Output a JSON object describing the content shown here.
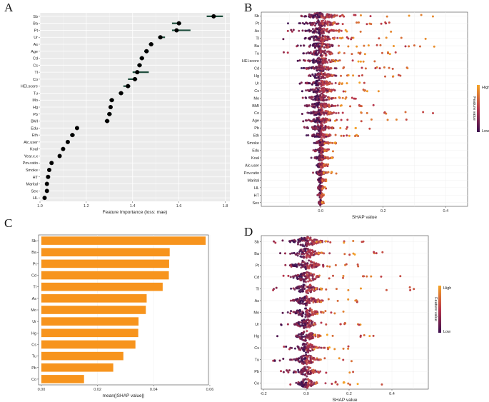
{
  "chart_data": [
    {
      "panel": "A",
      "type": "scatter",
      "subtype": "dot-and-interval",
      "xlabel": "Feature Importance (loss: mae)",
      "xlim": [
        1.0,
        1.82
      ],
      "xticks": [
        1.0,
        1.2,
        1.4,
        1.6,
        1.8
      ],
      "xtick_labels": [
        "1.0",
        "1.2",
        "1.4",
        "1.6",
        "1.8"
      ],
      "points": [
        {
          "label": "Sb",
          "value": 1.75,
          "lo": 1.72,
          "hi": 1.79
        },
        {
          "label": "Ba",
          "value": 1.6,
          "lo": 1.57,
          "hi": 1.61
        },
        {
          "label": "Pt",
          "value": 1.59,
          "lo": 1.57,
          "hi": 1.65
        },
        {
          "label": "Ur",
          "value": 1.52,
          "lo": 1.51,
          "hi": 1.54
        },
        {
          "label": "As",
          "value": 1.48,
          "lo": 1.47,
          "hi": 1.49
        },
        {
          "label": "Age",
          "value": 1.46,
          "lo": 1.45,
          "hi": 1.47
        },
        {
          "label": "Cd",
          "value": 1.44,
          "lo": 1.43,
          "hi": 1.45
        },
        {
          "label": "Cs",
          "value": 1.43,
          "lo": 1.42,
          "hi": 1.44
        },
        {
          "label": "Tl",
          "value": 1.42,
          "lo": 1.4,
          "hi": 1.47
        },
        {
          "label": "Co",
          "value": 1.41,
          "lo": 1.38,
          "hi": 1.42
        },
        {
          "label": "HEI.score",
          "value": 1.38,
          "lo": 1.36,
          "hi": 1.39
        },
        {
          "label": "Tu",
          "value": 1.35,
          "lo": 1.34,
          "hi": 1.36
        },
        {
          "label": "Mo",
          "value": 1.31,
          "lo": 1.3,
          "hi": 1.32
        },
        {
          "label": "Hg",
          "value": 1.305,
          "lo": 1.3,
          "hi": 1.31
        },
        {
          "label": "Pb",
          "value": 1.3,
          "lo": 1.29,
          "hi": 1.31
        },
        {
          "label": "BMI",
          "value": 1.29,
          "lo": 1.28,
          "hi": 1.3
        },
        {
          "label": "Edu",
          "value": 1.16,
          "lo": 1.16,
          "hi": 1.16
        },
        {
          "label": "Eth",
          "value": 1.14,
          "lo": 1.13,
          "hi": 1.15
        },
        {
          "label": "Alc.user",
          "value": 1.12,
          "lo": 1.12,
          "hi": 1.12
        },
        {
          "label": "Koal",
          "value": 1.1,
          "lo": 1.1,
          "hi": 1.1
        },
        {
          "label": "Year.x.x",
          "value": 1.085,
          "lo": 1.085,
          "hi": 1.085
        },
        {
          "label": "Pov.ratio",
          "value": 1.05,
          "lo": 1.05,
          "hi": 1.05
        },
        {
          "label": "Smoke",
          "value": 1.04,
          "lo": 1.04,
          "hi": 1.04
        },
        {
          "label": "HT",
          "value": 1.035,
          "lo": 1.035,
          "hi": 1.035
        },
        {
          "label": "Marital",
          "value": 1.03,
          "lo": 1.03,
          "hi": 1.03
        },
        {
          "label": "Sex",
          "value": 1.03,
          "lo": 1.03,
          "hi": 1.03
        },
        {
          "label": "HL",
          "value": 1.02,
          "lo": 1.02,
          "hi": 1.02
        }
      ]
    },
    {
      "panel": "B",
      "type": "scatter",
      "subtype": "shap-beeswarm",
      "xlabel": "SHAP value",
      "xlim": [
        -0.19,
        0.47
      ],
      "xticks": [
        0.0,
        0.2,
        0.4
      ],
      "xtick_labels": [
        "0.0",
        "0.2",
        "0.4"
      ],
      "legend_title": "Feature value",
      "legend_high": "High",
      "legend_low": "Low",
      "features": [
        {
          "label": "Sb",
          "spread": 0.05,
          "right_tail": 0.37,
          "left_tail": -0.15
        },
        {
          "label": "Pt",
          "spread": 0.05,
          "right_tail": 0.25,
          "left_tail": -0.12
        },
        {
          "label": "As",
          "spread": 0.04,
          "right_tail": 0.24,
          "left_tail": -0.11
        },
        {
          "label": "Tl",
          "spread": 0.04,
          "right_tail": 0.4,
          "left_tail": -0.15
        },
        {
          "label": "Ba",
          "spread": 0.04,
          "right_tail": 0.45,
          "left_tail": -0.14
        },
        {
          "label": "Tu",
          "spread": 0.04,
          "right_tail": 0.24,
          "left_tail": -0.13
        },
        {
          "label": "HEI.score",
          "spread": 0.04,
          "right_tail": 0.2,
          "left_tail": -0.08
        },
        {
          "label": "Cd",
          "spread": 0.035,
          "right_tail": 0.28,
          "left_tail": -0.08
        },
        {
          "label": "Hg",
          "spread": 0.035,
          "right_tail": 0.28,
          "left_tail": -0.07
        },
        {
          "label": "Ur",
          "spread": 0.035,
          "right_tail": 0.36,
          "left_tail": -0.07
        },
        {
          "label": "Cs",
          "spread": 0.035,
          "right_tail": 0.2,
          "left_tail": -0.07
        },
        {
          "label": "Mo",
          "spread": 0.035,
          "right_tail": 0.21,
          "left_tail": -0.07
        },
        {
          "label": "BMI",
          "spread": 0.035,
          "right_tail": 0.21,
          "left_tail": -0.07
        },
        {
          "label": "Co",
          "spread": 0.035,
          "right_tail": 0.36,
          "left_tail": -0.07
        },
        {
          "label": "Age",
          "spread": 0.03,
          "right_tail": 0.28,
          "left_tail": -0.06
        },
        {
          "label": "Pb",
          "spread": 0.03,
          "right_tail": 0.18,
          "left_tail": -0.06
        },
        {
          "label": "Eth",
          "spread": 0.025,
          "right_tail": 0.14,
          "left_tail": -0.03
        },
        {
          "label": "Smoke",
          "spread": 0.015,
          "right_tail": 0.05,
          "left_tail": -0.04
        },
        {
          "label": "Edu",
          "spread": 0.015,
          "right_tail": 0.04,
          "left_tail": -0.02
        },
        {
          "label": "Koal",
          "spread": 0.015,
          "right_tail": 0.05,
          "left_tail": -0.02
        },
        {
          "label": "Alc.user",
          "spread": 0.012,
          "right_tail": 0.03,
          "left_tail": -0.01
        },
        {
          "label": "Pov.ratio",
          "spread": 0.012,
          "right_tail": 0.05,
          "left_tail": -0.01
        },
        {
          "label": "Marital",
          "spread": 0.008,
          "right_tail": 0.02,
          "left_tail": -0.01
        },
        {
          "label": "HL",
          "spread": 0.008,
          "right_tail": 0.02,
          "left_tail": -0.01
        },
        {
          "label": "HT",
          "spread": 0.006,
          "right_tail": 0.01,
          "left_tail": -0.01
        },
        {
          "label": "Sex",
          "spread": 0.005,
          "right_tail": 0.01,
          "left_tail": -0.005
        }
      ]
    },
    {
      "panel": "C",
      "type": "bar",
      "orientation": "horizontal",
      "xlabel": "mean(|SHAP value|)",
      "xlim": [
        -0.001,
        0.0595
      ],
      "xticks": [
        0.0,
        0.02,
        0.04,
        0.06
      ],
      "xtick_labels": [
        "0.00",
        "0.02",
        "0.04",
        "0.06"
      ],
      "bar_color": "#f7941d",
      "categories": [
        "Sb",
        "Ba",
        "Pt",
        "Cd",
        "Tl",
        "As",
        "Mo",
        "Ur",
        "Hg",
        "Cs",
        "Tu",
        "Pb",
        "Co"
      ],
      "values": [
        0.0585,
        0.0457,
        0.0455,
        0.0454,
        0.0432,
        0.0375,
        0.0372,
        0.0346,
        0.0345,
        0.0335,
        0.0292,
        0.0256,
        0.0152
      ]
    },
    {
      "panel": "D",
      "type": "scatter",
      "subtype": "shap-beeswarm",
      "xlabel": "SHAP value",
      "xlim": [
        -0.21,
        0.57
      ],
      "xticks": [
        -0.2,
        0.0,
        0.2,
        0.4
      ],
      "xtick_labels": [
        "-0.2",
        "0.0",
        "0.2",
        "0.4"
      ],
      "legend_title": "Feature value",
      "legend_high": "High",
      "legend_low": "Low",
      "features": [
        {
          "label": "Sb",
          "spread": 0.06,
          "right_tail": 0.32,
          "left_tail": -0.16
        },
        {
          "label": "Ba",
          "spread": 0.055,
          "right_tail": 0.46,
          "left_tail": -0.19
        },
        {
          "label": "Pt",
          "spread": 0.055,
          "right_tail": 0.28,
          "left_tail": -0.15
        },
        {
          "label": "Cd",
          "spread": 0.055,
          "right_tail": 0.49,
          "left_tail": -0.15
        },
        {
          "label": "Tl",
          "spread": 0.05,
          "right_tail": 0.56,
          "left_tail": -0.18
        },
        {
          "label": "As",
          "spread": 0.05,
          "right_tail": 0.26,
          "left_tail": -0.12
        },
        {
          "label": "Mo",
          "spread": 0.05,
          "right_tail": 0.23,
          "left_tail": -0.12
        },
        {
          "label": "Ur",
          "spread": 0.045,
          "right_tail": 0.32,
          "left_tail": -0.12
        },
        {
          "label": "Hg",
          "spread": 0.045,
          "right_tail": 0.33,
          "left_tail": -0.14
        },
        {
          "label": "Cs",
          "spread": 0.045,
          "right_tail": 0.22,
          "left_tail": -0.12
        },
        {
          "label": "Tu",
          "spread": 0.045,
          "right_tail": 0.27,
          "left_tail": -0.16
        },
        {
          "label": "Pb",
          "spread": 0.04,
          "right_tail": 0.3,
          "left_tail": -0.12
        },
        {
          "label": "Co",
          "spread": 0.035,
          "right_tail": 0.49,
          "left_tail": -0.08
        }
      ]
    }
  ],
  "panel_letters": [
    "A",
    "B",
    "C",
    "D"
  ],
  "colors": {
    "panel_a_bg": "#ebebeb",
    "bar": "#f7941d",
    "low": "#3b0f4f",
    "mid": "#b8364b",
    "high": "#f6a524"
  }
}
